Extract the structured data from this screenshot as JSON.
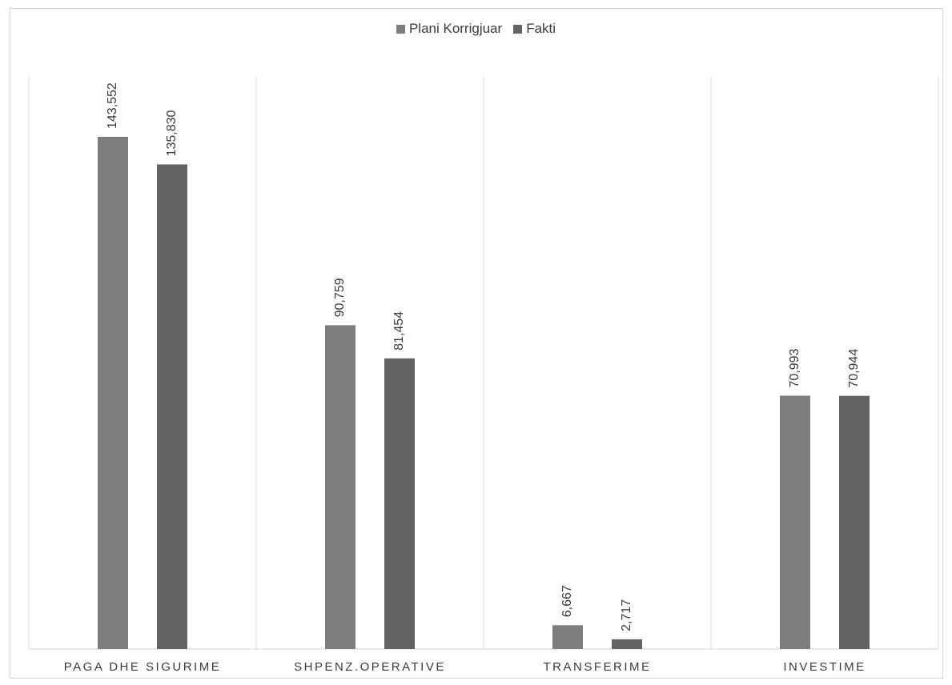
{
  "chart_data": {
    "type": "bar",
    "title": "",
    "xlabel": "",
    "ylabel": "",
    "categories": [
      "PAGA DHE SIGURIME",
      "SHPENZ.OPERATIVE",
      "TRANSFERIME",
      "INVESTIME"
    ],
    "series": [
      {
        "name": "Plani Korrigjuar",
        "values": [
          143552,
          90759,
          6667,
          70993
        ],
        "labels": [
          "143,552",
          "90,759",
          "6,667",
          "70,993"
        ],
        "color": "#7d7d7d"
      },
      {
        "name": "Fakti",
        "values": [
          135830,
          81454,
          2717,
          70944
        ],
        "labels": [
          "135,830",
          "81,454",
          "2,717",
          "70,944"
        ],
        "color": "#636363"
      }
    ],
    "ylim": [
      0,
      160000
    ],
    "grid": false,
    "legend_position": "top-center"
  }
}
